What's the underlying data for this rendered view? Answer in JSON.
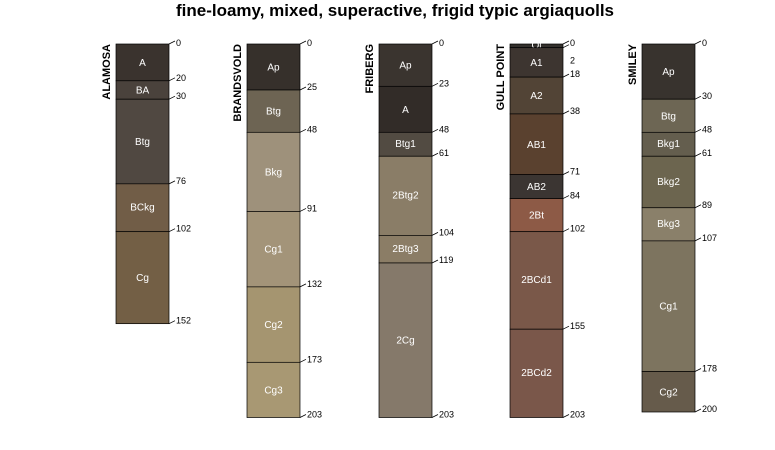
{
  "title": "fine-loamy, mixed, superactive, frigid typic argiaquolls",
  "profiles": [
    {
      "name": "ALAMOSA",
      "horizons": [
        {
          "name": "A",
          "top": 0,
          "bottom": 20,
          "color": "#3a332e"
        },
        {
          "name": "BA",
          "top": 20,
          "bottom": 30,
          "color": "#4a423c"
        },
        {
          "name": "Btg",
          "top": 30,
          "bottom": 76,
          "color": "#504841"
        },
        {
          "name": "BCkg",
          "top": 76,
          "bottom": 102,
          "color": "#715d47"
        },
        {
          "name": "Cg",
          "top": 102,
          "bottom": 152,
          "color": "#735f45"
        }
      ],
      "depth_labels": [
        "0",
        "20",
        "30",
        "76",
        "102",
        "152"
      ]
    },
    {
      "name": "BRANDSVOLD",
      "horizons": [
        {
          "name": "Ap",
          "top": 0,
          "bottom": 25,
          "color": "#36302b"
        },
        {
          "name": "Btg",
          "top": 25,
          "bottom": 48,
          "color": "#6d6453"
        },
        {
          "name": "Bkg",
          "top": 48,
          "bottom": 91,
          "color": "#9e917b"
        },
        {
          "name": "Cg1",
          "top": 91,
          "bottom": 132,
          "color": "#a39479"
        },
        {
          "name": "Cg2",
          "top": 132,
          "bottom": 173,
          "color": "#a59570"
        },
        {
          "name": "Cg3",
          "top": 173,
          "bottom": 203,
          "color": "#a89873"
        }
      ],
      "depth_labels": [
        "0",
        "25",
        "48",
        "91",
        "132",
        "173",
        "203"
      ]
    },
    {
      "name": "FRIBERG",
      "horizons": [
        {
          "name": "Ap",
          "top": 0,
          "bottom": 23,
          "color": "#3a342f"
        },
        {
          "name": "A",
          "top": 23,
          "bottom": 48,
          "color": "#322c28"
        },
        {
          "name": "Btg1",
          "top": 48,
          "bottom": 61,
          "color": "#524b42"
        },
        {
          "name": "2Btg2",
          "top": 61,
          "bottom": 104,
          "color": "#8a7d67"
        },
        {
          "name": "2Btg3",
          "top": 104,
          "bottom": 119,
          "color": "#8b7d66"
        },
        {
          "name": "2Cg",
          "top": 119,
          "bottom": 203,
          "color": "#85796a"
        }
      ],
      "depth_labels": [
        "0",
        "23",
        "48",
        "61",
        "104",
        "119",
        "203"
      ]
    },
    {
      "name": "GULL POINT",
      "horizons": [
        {
          "name": "Oi",
          "top": 0,
          "bottom": 2,
          "color": "#33302c"
        },
        {
          "name": "A1",
          "top": 2,
          "bottom": 18,
          "color": "#3d3530"
        },
        {
          "name": "A2",
          "top": 18,
          "bottom": 38,
          "color": "#524436"
        },
        {
          "name": "AB1",
          "top": 38,
          "bottom": 71,
          "color": "#5a412f"
        },
        {
          "name": "AB2",
          "top": 71,
          "bottom": 84,
          "color": "#3b3532"
        },
        {
          "name": "2Bt",
          "top": 84,
          "bottom": 102,
          "color": "#8d5a46"
        },
        {
          "name": "2BCd1",
          "top": 102,
          "bottom": 155,
          "color": "#7a5849"
        },
        {
          "name": "2BCd2",
          "top": 155,
          "bottom": 203,
          "color": "#7a574a"
        }
      ],
      "depth_labels": [
        "0",
        "2",
        "18",
        "38",
        "71",
        "84",
        "102",
        "155",
        "203"
      ]
    },
    {
      "name": "SMILEY",
      "horizons": [
        {
          "name": "Ap",
          "top": 0,
          "bottom": 30,
          "color": "#38332e"
        },
        {
          "name": "Btg",
          "top": 30,
          "bottom": 48,
          "color": "#6d6654"
        },
        {
          "name": "Bkg1",
          "top": 48,
          "bottom": 61,
          "color": "#645e4e"
        },
        {
          "name": "Bkg2",
          "top": 61,
          "bottom": 89,
          "color": "#6c654f"
        },
        {
          "name": "Bkg3",
          "top": 89,
          "bottom": 107,
          "color": "#8a806a"
        },
        {
          "name": "Cg1",
          "top": 107,
          "bottom": 178,
          "color": "#7d745f"
        },
        {
          "name": "Cg2",
          "top": 178,
          "bottom": 200,
          "color": "#665b4b"
        }
      ],
      "depth_labels": [
        "0",
        "30",
        "48",
        "61",
        "89",
        "107",
        "178",
        "200"
      ]
    }
  ]
}
